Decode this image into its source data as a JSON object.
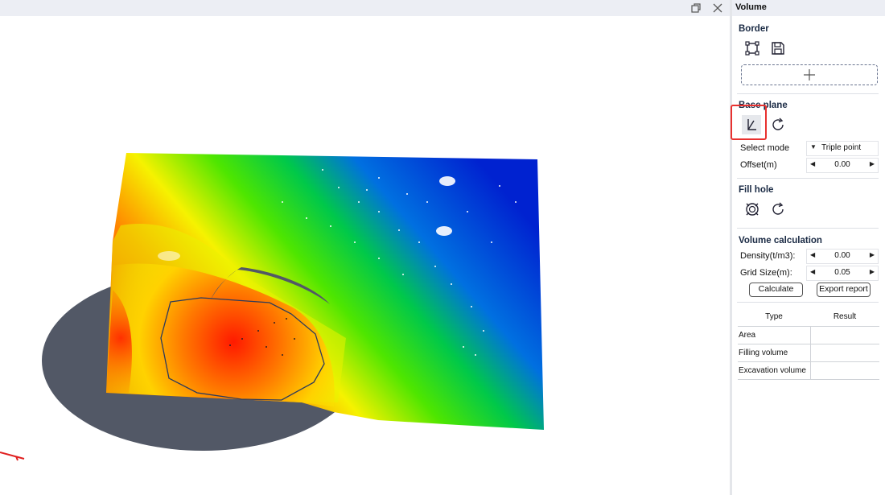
{
  "panel": {
    "title": "Volume",
    "border": {
      "title": "Border",
      "icons": [
        "border-rect-icon",
        "save-icon"
      ],
      "add_icon": "plus-icon"
    },
    "base_plane": {
      "title": "Base plane",
      "icons": [
        "pick-plane-icon",
        "reset-icon"
      ],
      "select_mode_label": "Select mode",
      "select_mode_value": "Triple point",
      "offset_label": "Offset(m)",
      "offset_value": "0.00"
    },
    "fill_hole": {
      "title": "Fill hole",
      "icons": [
        "fill-hole-icon",
        "reset-icon"
      ]
    },
    "volume_calc": {
      "title": "Volume calculation",
      "density_label": "Density(t/m3):",
      "density_value": "0.00",
      "grid_label": "Grid Size(m):",
      "grid_value": "0.05",
      "calculate_label": "Calculate",
      "export_label": "Export report"
    },
    "results": {
      "headers": [
        "Type",
        "Result"
      ],
      "rows": [
        {
          "type": "Area",
          "result": ""
        },
        {
          "type": "Filling volume",
          "result": ""
        },
        {
          "type": "Excavation volume",
          "result": ""
        }
      ]
    }
  },
  "viewport": {
    "window_icons": [
      "restore-icon",
      "close-icon"
    ],
    "highlight_color": "#e8312f"
  }
}
